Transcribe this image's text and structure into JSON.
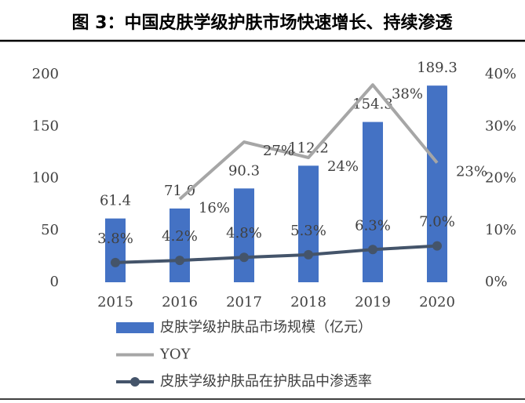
{
  "chart_data": {
    "type": "bar",
    "title": "图 3：中国皮肤学级护肤市场快速增长、持续渗透",
    "categories": [
      "2015",
      "2016",
      "2017",
      "2018",
      "2019",
      "2020"
    ],
    "series": [
      {
        "name": "皮肤学级护肤品市场规模（亿元）",
        "type": "bar",
        "color": "#4472c4",
        "values": [
          61.4,
          71.0,
          90.3,
          112.2,
          154.3,
          189.3
        ],
        "value_labels": [
          "61.4",
          "71.0",
          "90.3",
          "112.2",
          "154.3",
          "189.3"
        ]
      },
      {
        "name": "YOY",
        "type": "line",
        "axis": "y2",
        "color": "#a6a6a6",
        "values": [
          null,
          16,
          27,
          24,
          38,
          23
        ],
        "value_labels": [
          null,
          "16%",
          "27%",
          "24%",
          "38%",
          "23%"
        ]
      },
      {
        "name": "皮肤学级护肤品在护肤品中渗透率",
        "type": "line",
        "axis": "y2",
        "color": "#44546a",
        "marker": true,
        "values": [
          3.8,
          4.2,
          4.8,
          5.3,
          6.3,
          7.0
        ],
        "value_labels": [
          "3.8%",
          "4.2%",
          "4.8%",
          "5.3%",
          "6.3%",
          "7.0%"
        ]
      }
    ],
    "ylim": [
      0,
      200
    ],
    "yticks": [
      0,
      50,
      100,
      150,
      200
    ],
    "y2lim": [
      0,
      40
    ],
    "y2ticks": [
      {
        "value": 0,
        "label": "0%"
      },
      {
        "value": 10,
        "label": "10%"
      },
      {
        "value": 20,
        "label": "20%"
      },
      {
        "value": 30,
        "label": "30%"
      },
      {
        "value": 40,
        "label": "40%"
      }
    ]
  }
}
